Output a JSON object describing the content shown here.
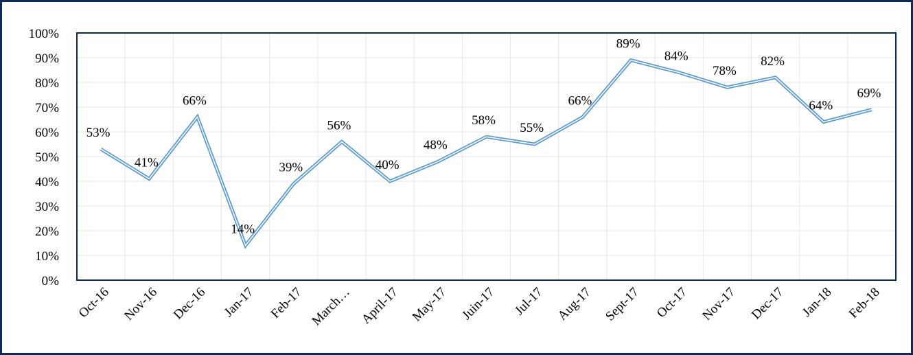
{
  "chart_data": {
    "type": "line",
    "categories": [
      "Oct-16",
      "Nov-16",
      "Dec-16",
      "Jan-17",
      "Feb-17",
      "March…",
      "April-17",
      "May-17",
      "Juin-17",
      "Jul-17",
      "Aug-17",
      "Sept-17",
      "Oct-17",
      "Nov-17",
      "Dec-17",
      "Jan-18",
      "Feb-18"
    ],
    "series": [
      {
        "color": "#5b9bd5",
        "values": [
          53,
          41,
          66,
          14,
          39,
          56,
          40,
          48,
          58,
          55,
          66,
          89,
          84,
          78,
          82,
          64,
          69
        ],
        "value_labels": [
          "53%",
          "41%",
          "66%",
          "14%",
          "39%",
          "56%",
          "40%",
          "48%",
          "58%",
          "55%",
          "66%",
          "89%",
          "84%",
          "78%",
          "82%",
          "64%",
          "69%"
        ]
      }
    ],
    "ylim": [
      0,
      100
    ],
    "yticks": [
      {
        "value": 0,
        "label": "0%"
      },
      {
        "value": 10,
        "label": "10%"
      },
      {
        "value": 20,
        "label": "20%"
      },
      {
        "value": 30,
        "label": "30%"
      },
      {
        "value": 40,
        "label": "40%"
      },
      {
        "value": 50,
        "label": "50%"
      },
      {
        "value": 60,
        "label": "60%"
      },
      {
        "value": 70,
        "label": "70%"
      },
      {
        "value": 80,
        "label": "80%"
      },
      {
        "value": 90,
        "label": "90%"
      },
      {
        "value": 100,
        "label": "100%"
      }
    ],
    "grid": true
  }
}
